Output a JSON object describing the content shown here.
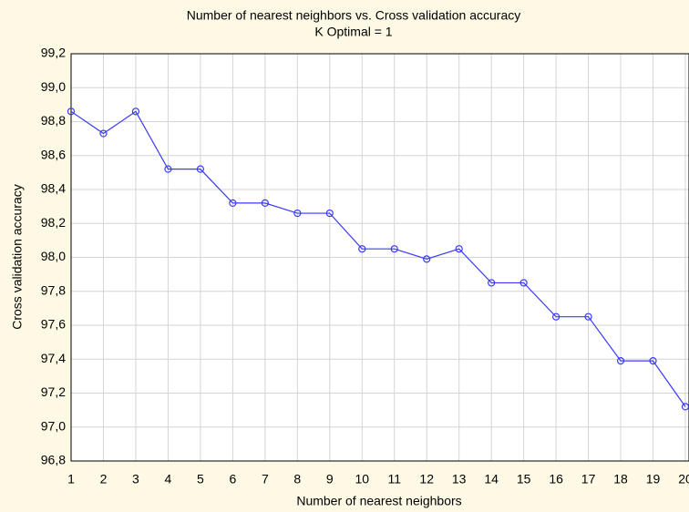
{
  "chart_data": {
    "type": "line",
    "title": "Number of nearest neighbors vs. Cross validation accuracy",
    "subtitle": "K Optimal = 1",
    "x_label": "Number of nearest neighbors",
    "y_label": "Cross validation accuracy",
    "x": [
      1,
      2,
      3,
      4,
      5,
      6,
      7,
      8,
      9,
      10,
      11,
      12,
      13,
      14,
      15,
      16,
      17,
      18,
      19,
      20
    ],
    "series": [
      {
        "name": "Cross validation accuracy",
        "color": "#3a3aff",
        "values": [
          98.86,
          98.73,
          98.86,
          98.52,
          98.52,
          98.32,
          98.32,
          98.26,
          98.26,
          98.05,
          98.05,
          97.99,
          98.05,
          97.85,
          97.85,
          97.65,
          97.65,
          97.39,
          97.39,
          97.12
        ]
      }
    ],
    "xlim": [
      1,
      20
    ],
    "xticks": [
      1,
      2,
      3,
      4,
      5,
      6,
      7,
      8,
      9,
      10,
      11,
      12,
      13,
      14,
      15,
      16,
      17,
      18,
      19,
      20
    ],
    "ylim": [
      96.8,
      99.2
    ],
    "yticks": [
      {
        "value": 96.8,
        "label": "96,8"
      },
      {
        "value": 97.0,
        "label": "97,0"
      },
      {
        "value": 97.2,
        "label": "97,2"
      },
      {
        "value": 97.4,
        "label": "97,4"
      },
      {
        "value": 97.6,
        "label": "97,6"
      },
      {
        "value": 97.8,
        "label": "97,8"
      },
      {
        "value": 98.0,
        "label": "98,0"
      },
      {
        "value": 98.2,
        "label": "98,2"
      },
      {
        "value": 98.4,
        "label": "98,4"
      },
      {
        "value": 98.6,
        "label": "98,6"
      },
      {
        "value": 98.8,
        "label": "98,8"
      },
      {
        "value": 99.0,
        "label": "99,0"
      },
      {
        "value": 99.2,
        "label": "99,2"
      }
    ],
    "grid": true
  }
}
